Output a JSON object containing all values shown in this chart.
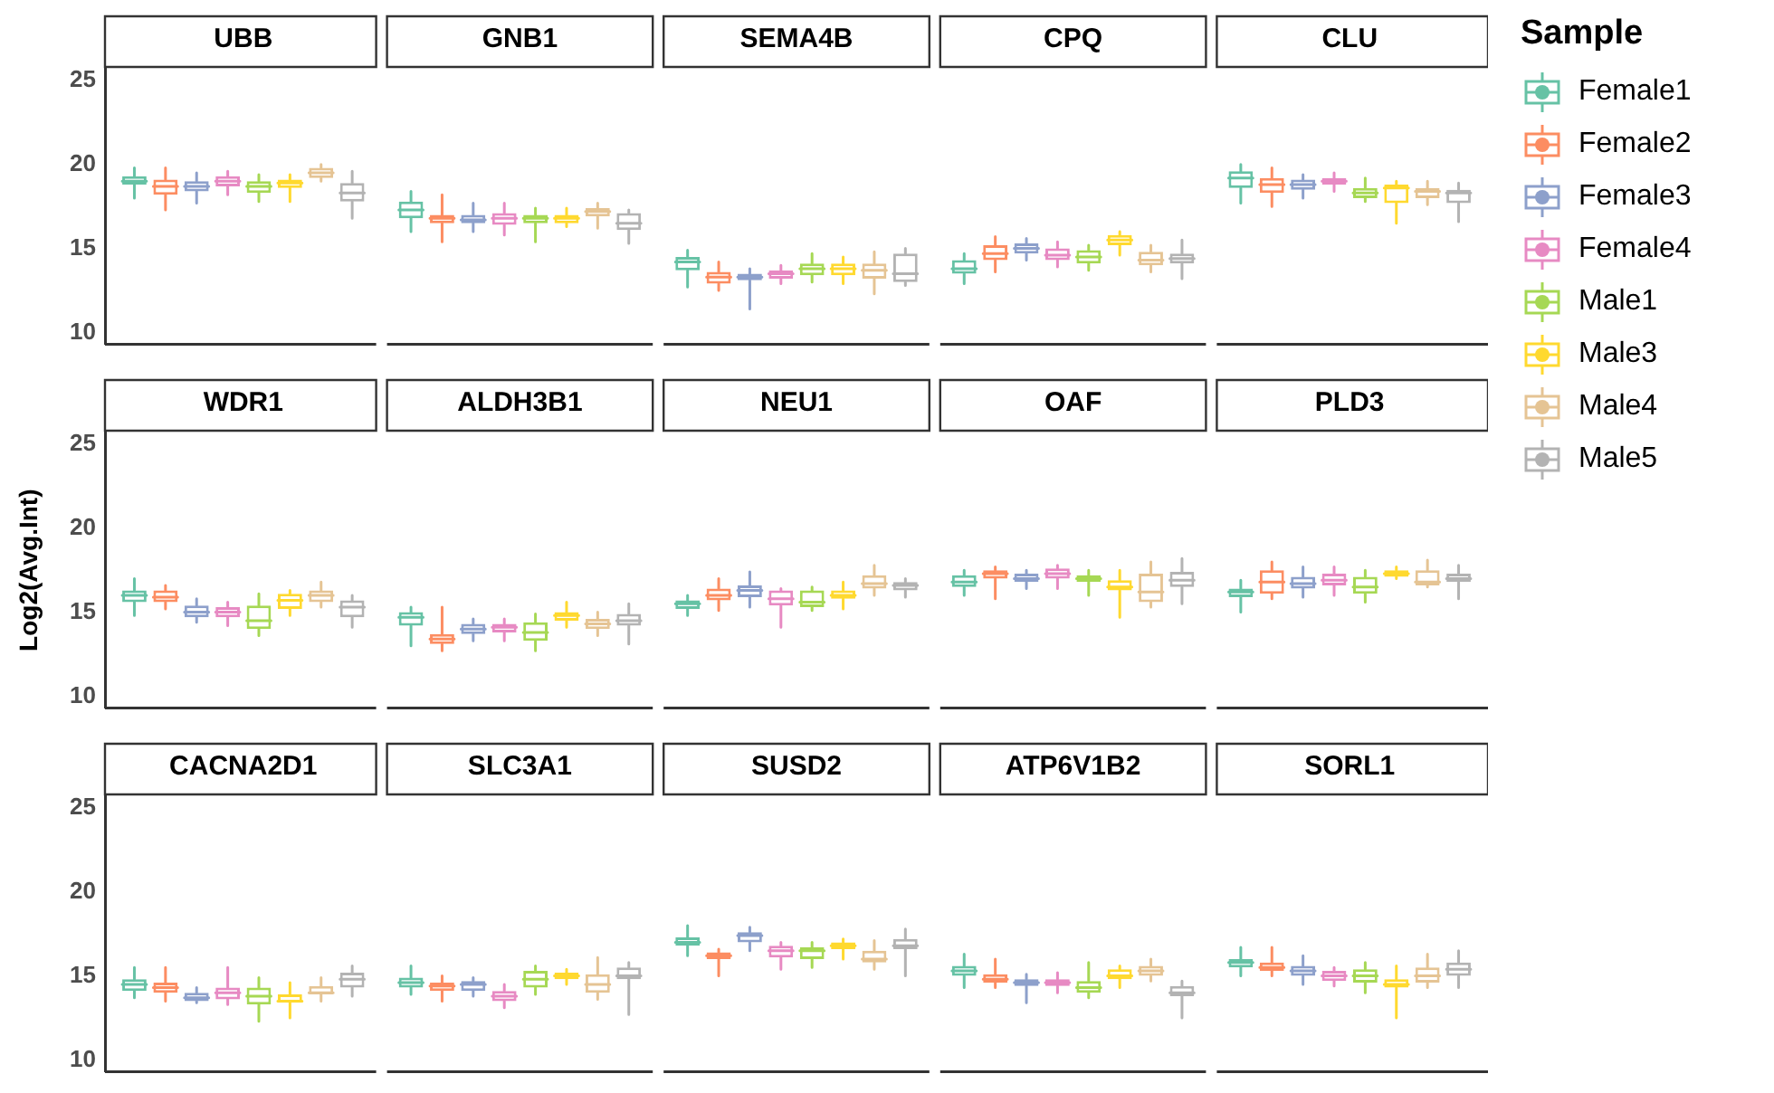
{
  "chart_data": [
    {
      "type": "box",
      "categories": [
        "UBB",
        "GNB1",
        "SEMA4B",
        "CPQ",
        "CLU"
      ],
      "legend_title": "Sample",
      "legend": "right",
      "ylim": [
        9.3,
        25.7
      ],
      "yticks": [
        10,
        15,
        20,
        25
      ],
      "series": [
        {
          "name": "Female1",
          "color": "#66c2a5",
          "boxes": [
            {
              "low": 18.0,
              "q1": 18.8,
              "median": 19.0,
              "q3": 19.3,
              "high": 19.8
            },
            {
              "low": 16.0,
              "q1": 16.8,
              "median": 17.3,
              "q3": 17.8,
              "high": 18.4
            },
            {
              "low": 12.7,
              "q1": 13.7,
              "median": 14.2,
              "q3": 14.5,
              "high": 14.9
            },
            {
              "low": 12.9,
              "q1": 13.5,
              "median": 13.8,
              "q3": 14.3,
              "high": 14.7
            },
            {
              "low": 17.7,
              "q1": 18.6,
              "median": 19.2,
              "q3": 19.6,
              "high": 20.0
            }
          ]
        },
        {
          "name": "Female2",
          "color": "#fc8d62",
          "boxes": [
            {
              "low": 17.3,
              "q1": 18.2,
              "median": 18.7,
              "q3": 19.1,
              "high": 19.8
            },
            {
              "low": 15.4,
              "q1": 16.5,
              "median": 16.8,
              "q3": 17.0,
              "high": 18.2
            },
            {
              "low": 12.5,
              "q1": 12.9,
              "median": 13.3,
              "q3": 13.6,
              "high": 14.2
            },
            {
              "low": 13.6,
              "q1": 14.3,
              "median": 14.7,
              "q3": 15.2,
              "high": 15.7
            },
            {
              "low": 17.5,
              "q1": 18.3,
              "median": 18.8,
              "q3": 19.2,
              "high": 19.8
            }
          ]
        },
        {
          "name": "Female3",
          "color": "#8da0cb",
          "boxes": [
            {
              "low": 17.7,
              "q1": 18.4,
              "median": 18.7,
              "q3": 19.0,
              "high": 19.5
            },
            {
              "low": 16.0,
              "q1": 16.5,
              "median": 16.7,
              "q3": 17.0,
              "high": 17.7
            },
            {
              "low": 11.4,
              "q1": 13.1,
              "median": 13.3,
              "q3": 13.5,
              "high": 13.8
            },
            {
              "low": 14.3,
              "q1": 14.7,
              "median": 15.0,
              "q3": 15.3,
              "high": 15.6
            },
            {
              "low": 18.0,
              "q1": 18.5,
              "median": 18.8,
              "q3": 19.1,
              "high": 19.4
            }
          ]
        },
        {
          "name": "Female4",
          "color": "#e78ac3",
          "boxes": [
            {
              "low": 18.2,
              "q1": 18.7,
              "median": 19.0,
              "q3": 19.3,
              "high": 19.6
            },
            {
              "low": 15.8,
              "q1": 16.4,
              "median": 16.8,
              "q3": 17.1,
              "high": 17.7
            },
            {
              "low": 12.9,
              "q1": 13.2,
              "median": 13.5,
              "q3": 13.7,
              "high": 14.0
            },
            {
              "low": 13.9,
              "q1": 14.3,
              "median": 14.6,
              "q3": 15.0,
              "high": 15.4
            },
            {
              "low": 18.4,
              "q1": 18.8,
              "median": 19.0,
              "q3": 19.2,
              "high": 19.5
            }
          ]
        },
        {
          "name": "Male1",
          "color": "#a6d854",
          "boxes": [
            {
              "low": 17.8,
              "q1": 18.3,
              "median": 18.7,
              "q3": 19.0,
              "high": 19.4
            },
            {
              "low": 15.4,
              "q1": 16.5,
              "median": 16.8,
              "q3": 17.0,
              "high": 17.4
            },
            {
              "low": 13.0,
              "q1": 13.4,
              "median": 13.8,
              "q3": 14.1,
              "high": 14.7
            },
            {
              "low": 13.7,
              "q1": 14.1,
              "median": 14.5,
              "q3": 14.9,
              "high": 15.2
            },
            {
              "low": 17.8,
              "q1": 18.0,
              "median": 18.3,
              "q3": 18.6,
              "high": 19.2
            }
          ]
        },
        {
          "name": "Male3",
          "color": "#ffd92f",
          "boxes": [
            {
              "low": 17.8,
              "q1": 18.6,
              "median": 18.9,
              "q3": 19.1,
              "high": 19.4
            },
            {
              "low": 16.3,
              "q1": 16.5,
              "median": 16.8,
              "q3": 17.0,
              "high": 17.4
            },
            {
              "low": 12.9,
              "q1": 13.4,
              "median": 13.8,
              "q3": 14.1,
              "high": 14.5
            },
            {
              "low": 14.6,
              "q1": 15.2,
              "median": 15.5,
              "q3": 15.8,
              "high": 16.0
            },
            {
              "low": 16.5,
              "q1": 17.7,
              "median": 18.6,
              "q3": 18.8,
              "high": 19.0
            }
          ]
        },
        {
          "name": "Male4",
          "color": "#e5c494",
          "boxes": [
            {
              "low": 19.0,
              "q1": 19.2,
              "median": 19.5,
              "q3": 19.8,
              "high": 20.0
            },
            {
              "low": 16.2,
              "q1": 16.9,
              "median": 17.2,
              "q3": 17.4,
              "high": 17.7
            },
            {
              "low": 12.3,
              "q1": 13.2,
              "median": 13.7,
              "q3": 14.1,
              "high": 14.8
            },
            {
              "low": 13.6,
              "q1": 14.0,
              "median": 14.3,
              "q3": 14.8,
              "high": 15.2
            },
            {
              "low": 17.6,
              "q1": 18.0,
              "median": 18.4,
              "q3": 18.6,
              "high": 19.0
            }
          ]
        },
        {
          "name": "Male5",
          "color": "#b3b3b3",
          "boxes": [
            {
              "low": 16.8,
              "q1": 17.8,
              "median": 18.3,
              "q3": 18.9,
              "high": 19.6
            },
            {
              "low": 15.3,
              "q1": 16.1,
              "median": 16.5,
              "q3": 17.1,
              "high": 17.3
            },
            {
              "low": 12.8,
              "q1": 13.0,
              "median": 13.5,
              "q3": 14.7,
              "high": 15.0
            },
            {
              "low": 13.2,
              "q1": 14.1,
              "median": 14.4,
              "q3": 14.7,
              "high": 15.5
            },
            {
              "low": 16.6,
              "q1": 17.7,
              "median": 18.3,
              "q3": 18.5,
              "high": 18.9
            }
          ]
        }
      ]
    },
    {
      "type": "box",
      "categories": [
        "WDR1",
        "ALDH3B1",
        "NEU1",
        "OAF",
        "PLD3"
      ],
      "ylabel": "Log2(Avg.Int)",
      "ylim": [
        9.3,
        25.7
      ],
      "yticks": [
        10,
        15,
        20,
        25
      ],
      "series": [
        {
          "color": "#66c2a5",
          "boxes": [
            {
              "low": 14.8,
              "q1": 15.6,
              "median": 16.0,
              "q3": 16.3,
              "high": 17.0
            },
            {
              "low": 13.0,
              "q1": 14.2,
              "median": 14.7,
              "q3": 15.0,
              "high": 15.3
            },
            {
              "low": 14.8,
              "q1": 15.2,
              "median": 15.5,
              "q3": 15.7,
              "high": 16.0
            },
            {
              "low": 16.0,
              "q1": 16.5,
              "median": 16.8,
              "q3": 17.2,
              "high": 17.5
            },
            {
              "low": 15.0,
              "q1": 15.9,
              "median": 16.2,
              "q3": 16.4,
              "high": 16.9
            }
          ]
        },
        {
          "color": "#fc8d62",
          "boxes": [
            {
              "low": 15.2,
              "q1": 15.6,
              "median": 15.9,
              "q3": 16.3,
              "high": 16.6
            },
            {
              "low": 12.7,
              "q1": 13.1,
              "median": 13.4,
              "q3": 13.7,
              "high": 15.3
            },
            {
              "low": 15.1,
              "q1": 15.7,
              "median": 16.0,
              "q3": 16.4,
              "high": 17.0
            },
            {
              "low": 15.8,
              "q1": 17.0,
              "median": 17.3,
              "q3": 17.5,
              "high": 17.7
            },
            {
              "low": 15.8,
              "q1": 16.1,
              "median": 16.8,
              "q3": 17.5,
              "high": 18.0
            }
          ]
        },
        {
          "color": "#8da0cb",
          "boxes": [
            {
              "low": 14.4,
              "q1": 14.7,
              "median": 15.0,
              "q3": 15.4,
              "high": 15.8
            },
            {
              "low": 13.3,
              "q1": 13.7,
              "median": 14.0,
              "q3": 14.3,
              "high": 14.6
            },
            {
              "low": 15.3,
              "q1": 15.9,
              "median": 16.3,
              "q3": 16.6,
              "high": 17.4
            },
            {
              "low": 16.4,
              "q1": 16.8,
              "median": 17.0,
              "q3": 17.3,
              "high": 17.5
            },
            {
              "low": 15.9,
              "q1": 16.4,
              "median": 16.7,
              "q3": 17.1,
              "high": 17.7
            }
          ]
        },
        {
          "color": "#e78ac3",
          "boxes": [
            {
              "low": 14.2,
              "q1": 14.7,
              "median": 15.0,
              "q3": 15.3,
              "high": 15.6
            },
            {
              "low": 13.3,
              "q1": 13.8,
              "median": 14.1,
              "q3": 14.3,
              "high": 14.6
            },
            {
              "low": 14.1,
              "q1": 15.4,
              "median": 15.8,
              "q3": 16.3,
              "high": 16.4
            },
            {
              "low": 16.4,
              "q1": 17.0,
              "median": 17.3,
              "q3": 17.6,
              "high": 17.8
            },
            {
              "low": 16.0,
              "q1": 16.6,
              "median": 16.9,
              "q3": 17.3,
              "high": 17.7
            }
          ]
        },
        {
          "color": "#a6d854",
          "boxes": [
            {
              "low": 13.6,
              "q1": 14.0,
              "median": 14.5,
              "q3": 15.4,
              "high": 16.1
            },
            {
              "low": 12.7,
              "q1": 13.3,
              "median": 13.8,
              "q3": 14.4,
              "high": 14.9
            },
            {
              "low": 15.1,
              "q1": 15.3,
              "median": 15.6,
              "q3": 16.3,
              "high": 16.5
            },
            {
              "low": 16.0,
              "q1": 16.8,
              "median": 17.0,
              "q3": 17.2,
              "high": 17.5
            },
            {
              "low": 15.6,
              "q1": 16.1,
              "median": 16.5,
              "q3": 17.1,
              "high": 17.5
            }
          ]
        },
        {
          "color": "#ffd92f",
          "boxes": [
            {
              "low": 14.8,
              "q1": 15.2,
              "median": 15.7,
              "q3": 16.1,
              "high": 16.3
            },
            {
              "low": 14.1,
              "q1": 14.5,
              "median": 14.8,
              "q3": 15.0,
              "high": 15.6
            },
            {
              "low": 15.2,
              "q1": 15.8,
              "median": 16.0,
              "q3": 16.3,
              "high": 16.8
            },
            {
              "low": 14.7,
              "q1": 16.3,
              "median": 16.5,
              "q3": 16.9,
              "high": 17.5
            },
            {
              "low": 17.0,
              "q1": 17.1,
              "median": 17.3,
              "q3": 17.5,
              "high": 17.7
            }
          ]
        },
        {
          "color": "#e5c494",
          "boxes": [
            {
              "low": 15.3,
              "q1": 15.6,
              "median": 16.0,
              "q3": 16.3,
              "high": 16.8
            },
            {
              "low": 13.6,
              "q1": 14.0,
              "median": 14.3,
              "q3": 14.6,
              "high": 15.0
            },
            {
              "low": 16.0,
              "q1": 16.4,
              "median": 16.7,
              "q3": 17.2,
              "high": 17.8
            },
            {
              "low": 15.3,
              "q1": 15.6,
              "median": 16.2,
              "q3": 17.3,
              "high": 18.0
            },
            {
              "low": 16.5,
              "q1": 16.6,
              "median": 16.8,
              "q3": 17.5,
              "high": 18.1
            }
          ]
        },
        {
          "color": "#b3b3b3",
          "boxes": [
            {
              "low": 14.1,
              "q1": 14.7,
              "median": 15.3,
              "q3": 15.7,
              "high": 16.0
            },
            {
              "low": 13.1,
              "q1": 14.2,
              "median": 14.5,
              "q3": 14.9,
              "high": 15.5
            },
            {
              "low": 15.9,
              "q1": 16.3,
              "median": 16.6,
              "q3": 16.8,
              "high": 17.0
            },
            {
              "low": 15.5,
              "q1": 16.5,
              "median": 16.9,
              "q3": 17.4,
              "high": 18.2
            },
            {
              "low": 15.8,
              "q1": 16.8,
              "median": 17.0,
              "q3": 17.3,
              "high": 17.8
            }
          ]
        }
      ]
    },
    {
      "type": "box",
      "categories": [
        "CACNA2D1",
        "SLC3A1",
        "SUSD2",
        "ATP6V1B2",
        "SORL1"
      ],
      "ylim": [
        9.3,
        25.7
      ],
      "yticks": [
        10,
        15,
        20,
        25
      ],
      "series": [
        {
          "color": "#66c2a5",
          "boxes": [
            {
              "low": 13.7,
              "q1": 14.1,
              "median": 14.5,
              "q3": 14.8,
              "high": 15.5
            },
            {
              "low": 13.9,
              "q1": 14.3,
              "median": 14.6,
              "q3": 14.9,
              "high": 15.6
            },
            {
              "low": 16.2,
              "q1": 16.8,
              "median": 17.0,
              "q3": 17.3,
              "high": 18.0
            },
            {
              "low": 14.3,
              "q1": 15.0,
              "median": 15.3,
              "q3": 15.6,
              "high": 16.3
            },
            {
              "low": 15.0,
              "q1": 15.5,
              "median": 15.8,
              "q3": 16.0,
              "high": 16.7
            }
          ]
        },
        {
          "color": "#fc8d62",
          "boxes": [
            {
              "low": 13.5,
              "q1": 14.0,
              "median": 14.3,
              "q3": 14.6,
              "high": 15.5
            },
            {
              "low": 13.5,
              "q1": 14.1,
              "median": 14.4,
              "q3": 14.6,
              "high": 15.0
            },
            {
              "low": 15.0,
              "q1": 16.0,
              "median": 16.2,
              "q3": 16.4,
              "high": 16.6
            },
            {
              "low": 14.3,
              "q1": 14.6,
              "median": 14.8,
              "q3": 15.1,
              "high": 16.0
            },
            {
              "low": 15.0,
              "q1": 15.3,
              "median": 15.5,
              "q3": 15.8,
              "high": 16.7
            }
          ]
        },
        {
          "color": "#8da0cb",
          "boxes": [
            {
              "low": 13.4,
              "q1": 13.5,
              "median": 13.7,
              "q3": 14.0,
              "high": 14.3
            },
            {
              "low": 13.8,
              "q1": 14.1,
              "median": 14.5,
              "q3": 14.7,
              "high": 14.9
            },
            {
              "low": 16.5,
              "q1": 17.0,
              "median": 17.4,
              "q3": 17.6,
              "high": 17.9
            },
            {
              "low": 13.4,
              "q1": 14.4,
              "median": 14.6,
              "q3": 14.8,
              "high": 15.1
            },
            {
              "low": 14.5,
              "q1": 15.0,
              "median": 15.3,
              "q3": 15.6,
              "high": 16.2
            }
          ]
        },
        {
          "color": "#e78ac3",
          "boxes": [
            {
              "low": 13.3,
              "q1": 13.6,
              "median": 14.0,
              "q3": 14.3,
              "high": 15.5
            },
            {
              "low": 13.1,
              "q1": 13.5,
              "median": 13.8,
              "q3": 14.1,
              "high": 14.5
            },
            {
              "low": 15.4,
              "q1": 16.1,
              "median": 16.5,
              "q3": 16.8,
              "high": 17.0
            },
            {
              "low": 14.0,
              "q1": 14.4,
              "median": 14.6,
              "q3": 14.8,
              "high": 15.2
            },
            {
              "low": 14.4,
              "q1": 14.7,
              "median": 15.0,
              "q3": 15.3,
              "high": 15.5
            }
          ]
        },
        {
          "color": "#a6d854",
          "boxes": [
            {
              "low": 12.3,
              "q1": 13.3,
              "median": 13.8,
              "q3": 14.3,
              "high": 14.9
            },
            {
              "low": 13.9,
              "q1": 14.3,
              "median": 14.8,
              "q3": 15.3,
              "high": 15.6
            },
            {
              "low": 15.5,
              "q1": 16.0,
              "median": 16.5,
              "q3": 16.7,
              "high": 17.0
            },
            {
              "low": 13.7,
              "q1": 14.0,
              "median": 14.3,
              "q3": 14.7,
              "high": 15.8
            },
            {
              "low": 14.0,
              "q1": 14.6,
              "median": 15.0,
              "q3": 15.4,
              "high": 15.8
            }
          ]
        },
        {
          "color": "#ffd92f",
          "boxes": [
            {
              "low": 12.5,
              "q1": 13.4,
              "median": 13.5,
              "q3": 13.9,
              "high": 14.6
            },
            {
              "low": 14.5,
              "q1": 14.8,
              "median": 15.0,
              "q3": 15.2,
              "high": 15.4
            },
            {
              "low": 16.0,
              "q1": 16.6,
              "median": 16.8,
              "q3": 17.0,
              "high": 17.2
            },
            {
              "low": 14.3,
              "q1": 14.8,
              "median": 15.0,
              "q3": 15.4,
              "high": 15.6
            },
            {
              "low": 12.5,
              "q1": 14.3,
              "median": 14.5,
              "q3": 14.8,
              "high": 15.6
            }
          ]
        },
        {
          "color": "#e5c494",
          "boxes": [
            {
              "low": 13.5,
              "q1": 13.9,
              "median": 14.0,
              "q3": 14.4,
              "high": 14.9
            },
            {
              "low": 13.6,
              "q1": 14.0,
              "median": 14.5,
              "q3": 15.1,
              "high": 16.1
            },
            {
              "low": 15.4,
              "q1": 15.8,
              "median": 16.0,
              "q3": 16.5,
              "high": 17.1
            },
            {
              "low": 14.7,
              "q1": 15.0,
              "median": 15.3,
              "q3": 15.6,
              "high": 16.0
            },
            {
              "low": 14.3,
              "q1": 14.6,
              "median": 15.0,
              "q3": 15.5,
              "high": 16.3
            }
          ]
        },
        {
          "color": "#b3b3b3",
          "boxes": [
            {
              "low": 13.8,
              "q1": 14.3,
              "median": 14.8,
              "q3": 15.2,
              "high": 15.6
            },
            {
              "low": 12.7,
              "q1": 14.8,
              "median": 15.0,
              "q3": 15.5,
              "high": 15.8
            },
            {
              "low": 15.0,
              "q1": 16.6,
              "median": 16.8,
              "q3": 17.2,
              "high": 17.8
            },
            {
              "low": 12.5,
              "q1": 13.8,
              "median": 14.0,
              "q3": 14.4,
              "high": 14.7
            },
            {
              "low": 14.3,
              "q1": 15.0,
              "median": 15.4,
              "q3": 15.8,
              "high": 16.5
            }
          ]
        }
      ]
    }
  ]
}
